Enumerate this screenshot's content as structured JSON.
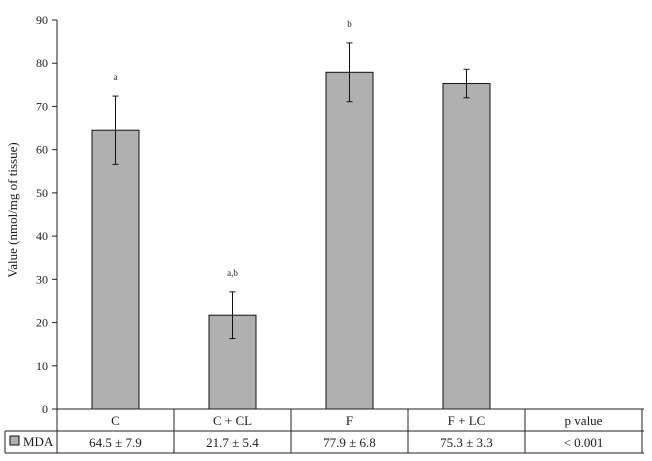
{
  "chart_data": {
    "type": "bar",
    "ylabel": "Value (nmol/mg of tissue)",
    "ylim": [
      0,
      90
    ],
    "yticks": [
      "0",
      "10",
      "20",
      "30",
      "40",
      "50",
      "60",
      "70",
      "80",
      "90"
    ],
    "grid": false,
    "categories": [
      "C",
      "C + CL",
      "F",
      "F + LC"
    ],
    "series": [
      {
        "name": "MDA",
        "values": [
          64.5,
          21.7,
          77.9,
          75.3
        ],
        "errors": [
          7.9,
          5.4,
          6.8,
          3.3
        ],
        "annotations": [
          "a",
          "a,b",
          "b",
          ""
        ]
      }
    ],
    "bar_color": "#b0b0b0",
    "table": {
      "header": [
        "C",
        "C + CL",
        "F",
        "F + LC",
        "p value"
      ],
      "row_label": "MDA",
      "row_values": [
        "64.5 ± 7.9",
        "21.7 ± 5.4",
        "77.9 ± 6.8",
        "75.3 ± 3.3",
        "< 0.001"
      ]
    }
  }
}
